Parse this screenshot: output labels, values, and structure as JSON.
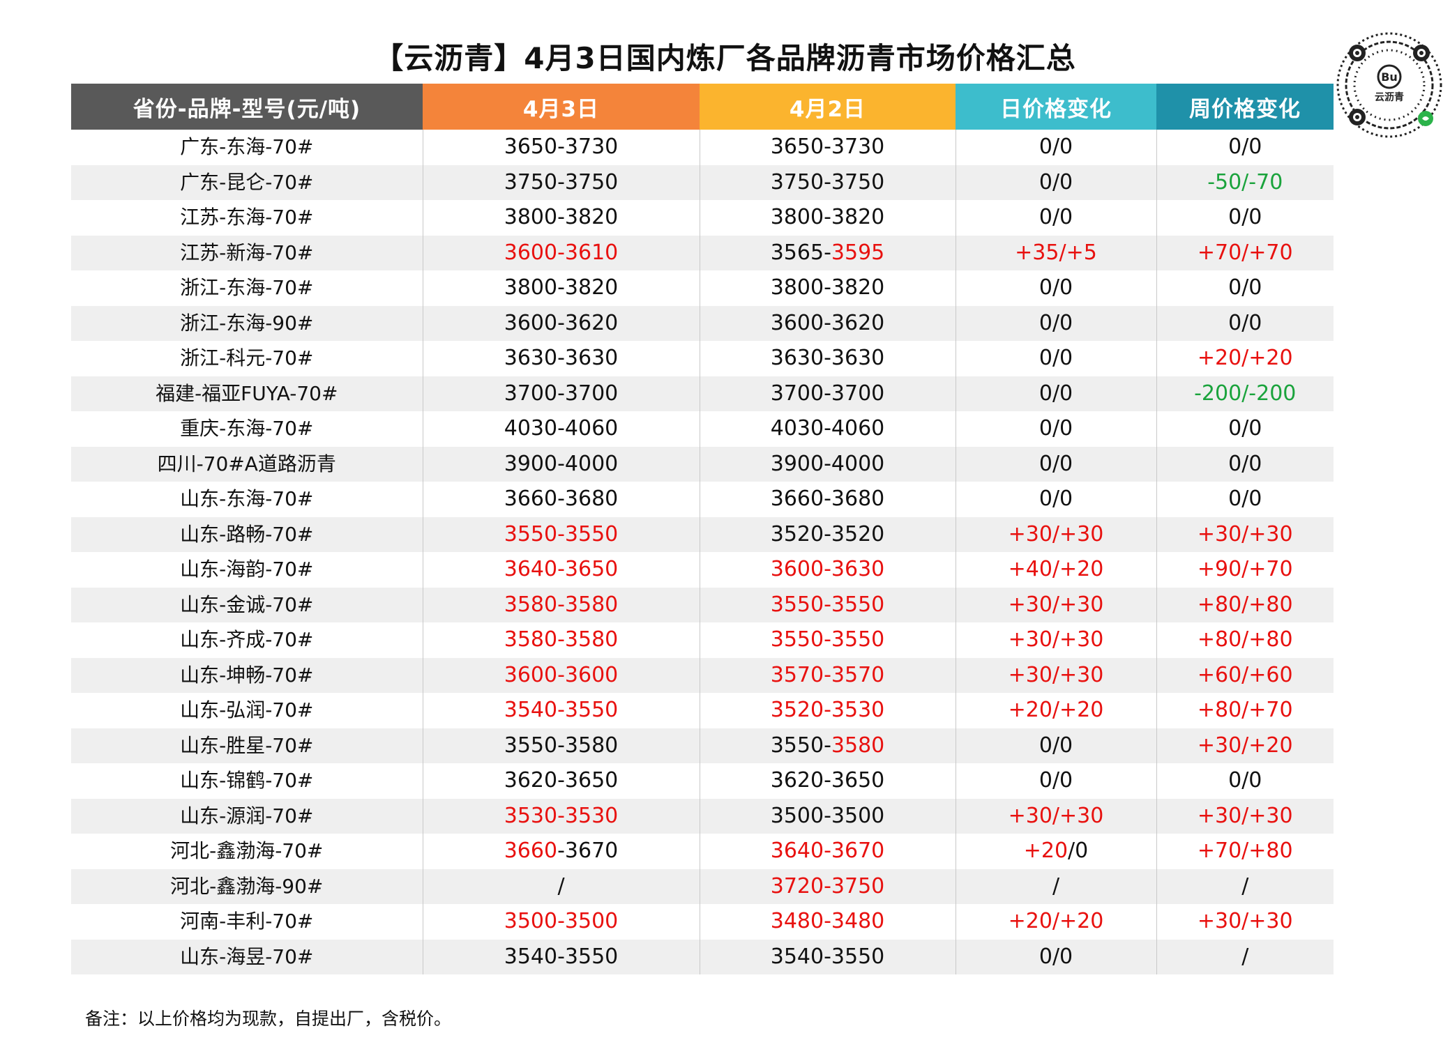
{
  "title": "【云沥青】4月3日国内炼厂各品牌沥青市场价格汇总",
  "qr_logo_text": "云沥青",
  "headers": [
    "省份-品牌-型号(元/吨)",
    "4月3日",
    "4月2日",
    "日价格变化",
    "周价格变化"
  ],
  "colors": {
    "up": "#e8110f",
    "down": "#1aa33c",
    "normal": "#111111"
  },
  "rows": [
    {
      "name": "广东-东海-70#",
      "apr3": [
        [
          "3650-3730",
          "n"
        ]
      ],
      "apr2": [
        [
          "3650-3730",
          "n"
        ]
      ],
      "day": [
        [
          "0/0",
          "n"
        ]
      ],
      "week": [
        [
          "0/0",
          "n"
        ]
      ]
    },
    {
      "name": "广东-昆仑-70#",
      "apr3": [
        [
          "3750-3750",
          "n"
        ]
      ],
      "apr2": [
        [
          "3750-3750",
          "n"
        ]
      ],
      "day": [
        [
          "0/0",
          "n"
        ]
      ],
      "week": [
        [
          "-50/-70",
          "g"
        ]
      ]
    },
    {
      "name": "江苏-东海-70#",
      "apr3": [
        [
          "3800-3820",
          "n"
        ]
      ],
      "apr2": [
        [
          "3800-3820",
          "n"
        ]
      ],
      "day": [
        [
          "0/0",
          "n"
        ]
      ],
      "week": [
        [
          "0/0",
          "n"
        ]
      ]
    },
    {
      "name": "江苏-新海-70#",
      "apr3": [
        [
          "3600-3610",
          "r"
        ]
      ],
      "apr2": [
        [
          "3565-",
          "n"
        ],
        [
          "3595",
          "r"
        ]
      ],
      "day": [
        [
          "+35/+5",
          "r"
        ]
      ],
      "week": [
        [
          "+70/+70",
          "r"
        ]
      ]
    },
    {
      "name": "浙江-东海-70#",
      "apr3": [
        [
          "3800-3820",
          "n"
        ]
      ],
      "apr2": [
        [
          "3800-3820",
          "n"
        ]
      ],
      "day": [
        [
          "0/0",
          "n"
        ]
      ],
      "week": [
        [
          "0/0",
          "n"
        ]
      ]
    },
    {
      "name": "浙江-东海-90#",
      "apr3": [
        [
          "3600-3620",
          "n"
        ]
      ],
      "apr2": [
        [
          "3600-3620",
          "n"
        ]
      ],
      "day": [
        [
          "0/0",
          "n"
        ]
      ],
      "week": [
        [
          "0/0",
          "n"
        ]
      ]
    },
    {
      "name": "浙江-科元-70#",
      "apr3": [
        [
          "3630-3630",
          "n"
        ]
      ],
      "apr2": [
        [
          "3630-3630",
          "n"
        ]
      ],
      "day": [
        [
          "0/0",
          "n"
        ]
      ],
      "week": [
        [
          "+20/+20",
          "r"
        ]
      ]
    },
    {
      "name": "福建-福亚FUYA-70#",
      "apr3": [
        [
          "3700-3700",
          "n"
        ]
      ],
      "apr2": [
        [
          "3700-3700",
          "n"
        ]
      ],
      "day": [
        [
          "0/0",
          "n"
        ]
      ],
      "week": [
        [
          "-200/-200",
          "g"
        ]
      ]
    },
    {
      "name": "重庆-东海-70#",
      "apr3": [
        [
          "4030-4060",
          "n"
        ]
      ],
      "apr2": [
        [
          "4030-4060",
          "n"
        ]
      ],
      "day": [
        [
          "0/0",
          "n"
        ]
      ],
      "week": [
        [
          "0/0",
          "n"
        ]
      ]
    },
    {
      "name": "四川-70#A道路沥青",
      "apr3": [
        [
          "3900-4000",
          "n"
        ]
      ],
      "apr2": [
        [
          "3900-4000",
          "n"
        ]
      ],
      "day": [
        [
          "0/0",
          "n"
        ]
      ],
      "week": [
        [
          "0/0",
          "n"
        ]
      ]
    },
    {
      "name": "山东-东海-70#",
      "apr3": [
        [
          "3660-3680",
          "n"
        ]
      ],
      "apr2": [
        [
          "3660-3680",
          "n"
        ]
      ],
      "day": [
        [
          "0/0",
          "n"
        ]
      ],
      "week": [
        [
          "0/0",
          "n"
        ]
      ]
    },
    {
      "name": "山东-路畅-70#",
      "apr3": [
        [
          "3550-3550",
          "r"
        ]
      ],
      "apr2": [
        [
          "3520-3520",
          "n"
        ]
      ],
      "day": [
        [
          "+30/+30",
          "r"
        ]
      ],
      "week": [
        [
          "+30/+30",
          "r"
        ]
      ]
    },
    {
      "name": "山东-海韵-70#",
      "apr3": [
        [
          "3640-3650",
          "r"
        ]
      ],
      "apr2": [
        [
          "3600-3630",
          "r"
        ]
      ],
      "day": [
        [
          "+40/+20",
          "r"
        ]
      ],
      "week": [
        [
          "+90/+70",
          "r"
        ]
      ]
    },
    {
      "name": "山东-金诚-70#",
      "apr3": [
        [
          "3580-3580",
          "r"
        ]
      ],
      "apr2": [
        [
          "3550-3550",
          "r"
        ]
      ],
      "day": [
        [
          "+30/+30",
          "r"
        ]
      ],
      "week": [
        [
          "+80/+80",
          "r"
        ]
      ]
    },
    {
      "name": "山东-齐成-70#",
      "apr3": [
        [
          "3580-3580",
          "r"
        ]
      ],
      "apr2": [
        [
          "3550-3550",
          "r"
        ]
      ],
      "day": [
        [
          "+30/+30",
          "r"
        ]
      ],
      "week": [
        [
          "+80/+80",
          "r"
        ]
      ]
    },
    {
      "name": "山东-坤畅-70#",
      "apr3": [
        [
          "3600-3600",
          "r"
        ]
      ],
      "apr2": [
        [
          "3570-3570",
          "r"
        ]
      ],
      "day": [
        [
          "+30/+30",
          "r"
        ]
      ],
      "week": [
        [
          "+60/+60",
          "r"
        ]
      ]
    },
    {
      "name": "山东-弘润-70#",
      "apr3": [
        [
          "3540-3550",
          "r"
        ]
      ],
      "apr2": [
        [
          "3520-3530",
          "r"
        ]
      ],
      "day": [
        [
          "+20/+20",
          "r"
        ]
      ],
      "week": [
        [
          "+80/+70",
          "r"
        ]
      ]
    },
    {
      "name": "山东-胜星-70#",
      "apr3": [
        [
          "3550-3580",
          "n"
        ]
      ],
      "apr2": [
        [
          "3550-",
          "n"
        ],
        [
          "3580",
          "r"
        ]
      ],
      "day": [
        [
          "0/0",
          "n"
        ]
      ],
      "week": [
        [
          "+30/+20",
          "r"
        ]
      ]
    },
    {
      "name": "山东-锦鹤-70#",
      "apr3": [
        [
          "3620-3650",
          "n"
        ]
      ],
      "apr2": [
        [
          "3620-3650",
          "n"
        ]
      ],
      "day": [
        [
          "0/0",
          "n"
        ]
      ],
      "week": [
        [
          "0/0",
          "n"
        ]
      ]
    },
    {
      "name": "山东-源润-70#",
      "apr3": [
        [
          "3530-3530",
          "r"
        ]
      ],
      "apr2": [
        [
          "3500-3500",
          "n"
        ]
      ],
      "day": [
        [
          "+30/+30",
          "r"
        ]
      ],
      "week": [
        [
          "+30/+30",
          "r"
        ]
      ]
    },
    {
      "name": "河北-鑫渤海-70#",
      "apr3": [
        [
          "3660",
          "r"
        ],
        [
          "-3670",
          "n"
        ]
      ],
      "apr2": [
        [
          "3640-3670",
          "r"
        ]
      ],
      "day": [
        [
          "+20",
          "r"
        ],
        [
          "/0",
          "n"
        ]
      ],
      "week": [
        [
          "+70/+80",
          "r"
        ]
      ]
    },
    {
      "name": "河北-鑫渤海-90#",
      "apr3": [
        [
          "/",
          "n"
        ]
      ],
      "apr2": [
        [
          "3720-3750",
          "r"
        ]
      ],
      "day": [
        [
          "/",
          "n"
        ]
      ],
      "week": [
        [
          "/",
          "n"
        ]
      ]
    },
    {
      "name": "河南-丰利-70#",
      "apr3": [
        [
          "3500-3500",
          "r"
        ]
      ],
      "apr2": [
        [
          "3480-3480",
          "r"
        ]
      ],
      "day": [
        [
          "+20/+20",
          "r"
        ]
      ],
      "week": [
        [
          "+30/+30",
          "r"
        ]
      ]
    },
    {
      "name": "山东-海昱-70#",
      "apr3": [
        [
          "3540-3550",
          "n"
        ]
      ],
      "apr2": [
        [
          "3540-3550",
          "n"
        ]
      ],
      "day": [
        [
          "0/0",
          "n"
        ]
      ],
      "week": [
        [
          "/",
          "n"
        ]
      ]
    }
  ],
  "note": "备注：以上价格均为现款，自提出厂，含税价。"
}
